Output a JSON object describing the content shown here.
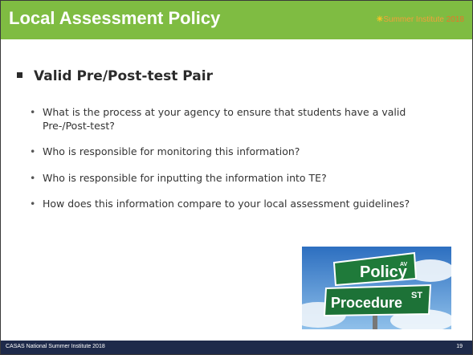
{
  "header": {
    "title": "Local Assessment Policy",
    "logo": {
      "name": "Summer Institute",
      "year": "2018"
    }
  },
  "content": {
    "heading": "Valid Pre/Post-test Pair",
    "bullets": [
      "What is the process at your agency to ensure that students have a valid Pre-/Post-test?",
      "Who is responsible for monitoring this information?",
      "Who is responsible for inputting the information into TE?",
      "How does this information compare to your local assessment guidelines?"
    ]
  },
  "image": {
    "sign_top": "Policy",
    "sign_top_suffix": "AV",
    "sign_bottom": "Procedure",
    "sign_bottom_suffix": "ST"
  },
  "footer": {
    "text": "CASAS National Summer Institute 2018",
    "page_number": 19
  }
}
